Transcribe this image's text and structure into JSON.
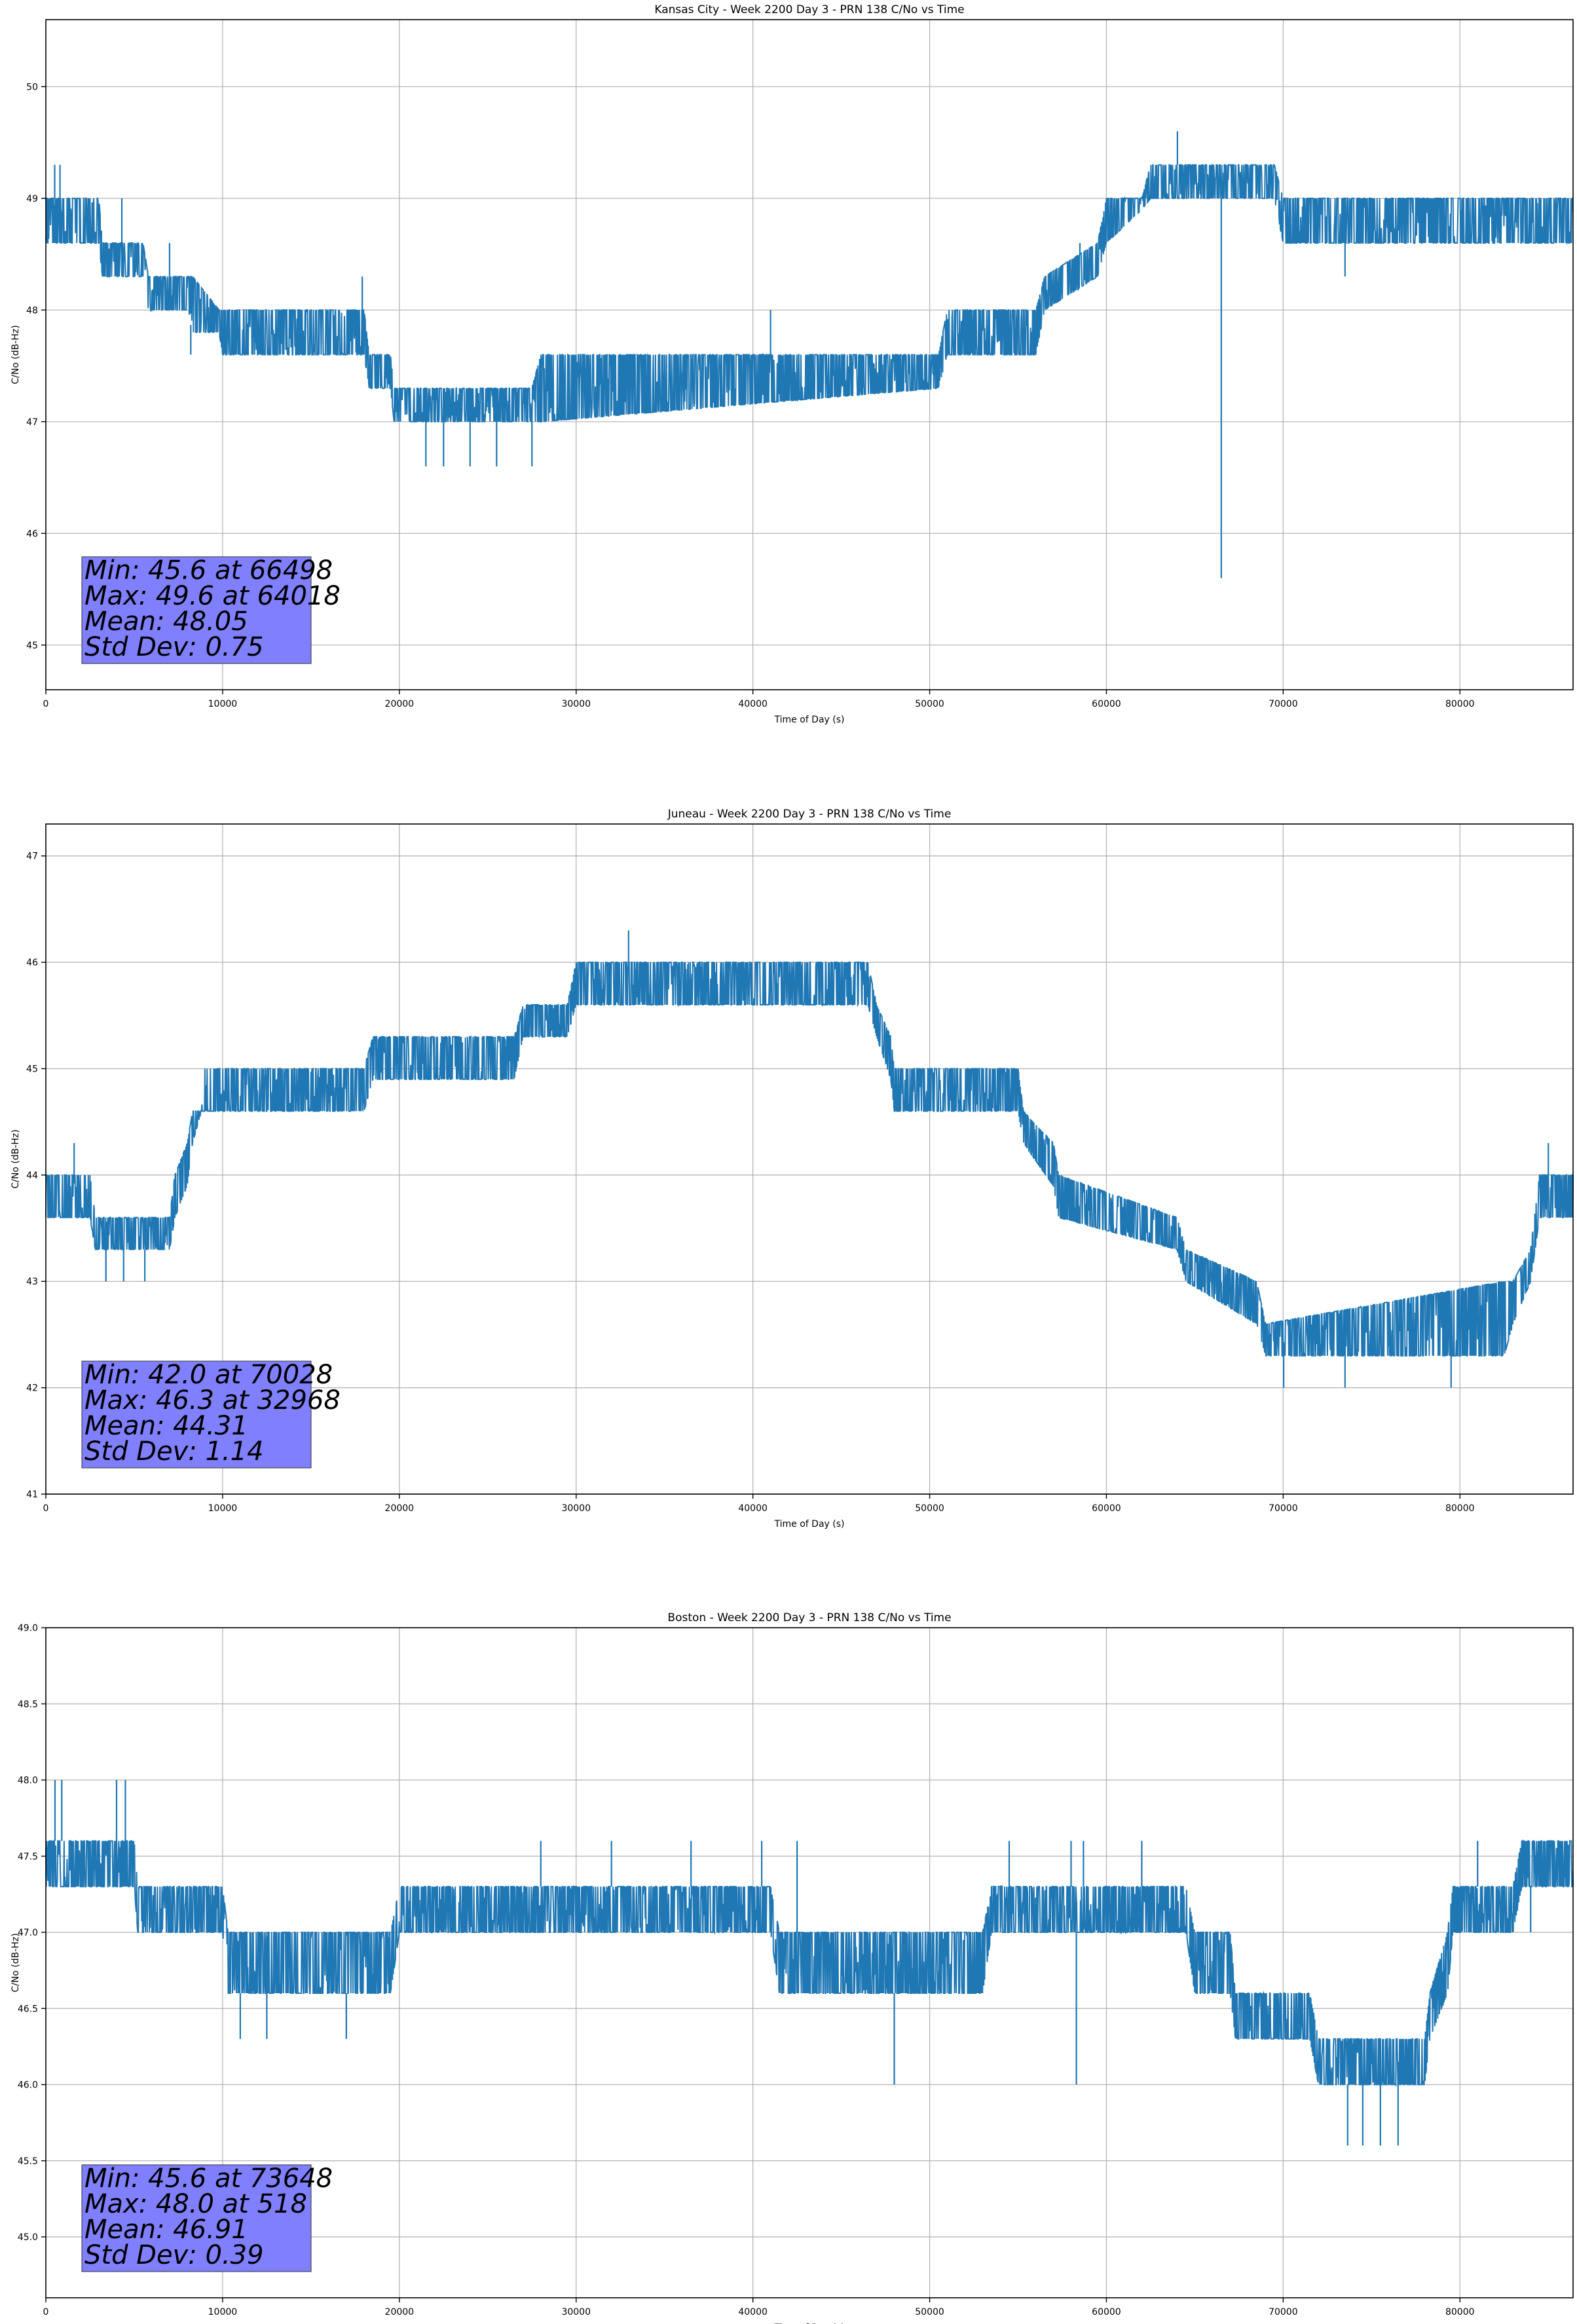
{
  "chart_data": [
    {
      "type": "line",
      "title": "Kansas City - Week 2200 Day 3 - PRN 138 C/No vs Time",
      "xlabel": "Time of Day (s)",
      "ylabel": "C/No (dB-Hz)",
      "xlim": [
        0,
        86400
      ],
      "ylim": [
        44.6,
        50.6
      ],
      "xticks": [
        0,
        10000,
        20000,
        30000,
        40000,
        50000,
        60000,
        70000,
        80000
      ],
      "yticks": [
        45,
        46,
        47,
        48,
        49,
        50
      ],
      "ytick_labels": [
        "45",
        "46",
        "47",
        "48",
        "49",
        "50"
      ],
      "grid": true,
      "series_color": "#1f77b4",
      "envelope": {
        "x": [
          0,
          3000,
          3200,
          5500,
          5800,
          8000,
          8300,
          9800,
          10000,
          18000,
          18300,
          19500,
          19700,
          27500,
          28000,
          50500,
          51000,
          56000,
          56500,
          59500,
          60000,
          62000,
          62500,
          69500,
          70000,
          86400
        ],
        "lo": [
          48.6,
          48.6,
          48.3,
          48.3,
          48.0,
          48.0,
          47.8,
          47.8,
          47.6,
          47.6,
          47.3,
          47.3,
          47.0,
          47.0,
          47.0,
          47.3,
          47.6,
          47.6,
          48.0,
          48.3,
          48.6,
          48.9,
          49.0,
          49.0,
          48.6,
          48.6
        ],
        "hi": [
          49.0,
          49.0,
          48.6,
          48.6,
          48.3,
          48.3,
          48.3,
          48.0,
          48.0,
          48.0,
          47.6,
          47.6,
          47.3,
          47.3,
          47.6,
          47.6,
          48.0,
          48.0,
          48.3,
          48.6,
          49.0,
          49.0,
          49.3,
          49.3,
          49.0,
          49.0
        ]
      },
      "spikes": [
        {
          "x": 500,
          "y": 49.3
        },
        {
          "x": 800,
          "y": 49.3
        },
        {
          "x": 4300,
          "y": 49.0
        },
        {
          "x": 7000,
          "y": 48.6
        },
        {
          "x": 8200,
          "y": 47.6
        },
        {
          "x": 17900,
          "y": 48.3
        },
        {
          "x": 21500,
          "y": 46.6
        },
        {
          "x": 22500,
          "y": 46.6
        },
        {
          "x": 24000,
          "y": 46.6
        },
        {
          "x": 25500,
          "y": 46.6
        },
        {
          "x": 27500,
          "y": 46.6
        },
        {
          "x": 41000,
          "y": 48.0
        },
        {
          "x": 58500,
          "y": 48.6
        },
        {
          "x": 64018,
          "y": 49.6
        },
        {
          "x": 66498,
          "y": 45.6
        },
        {
          "x": 73500,
          "y": 48.3
        }
      ],
      "annotation": {
        "lines": [
          "Min: 45.6 at 66498",
          "Max: 49.6 at 64018",
          "Mean: 48.05",
          "Std Dev: 0.75"
        ],
        "background": "#8080ff"
      }
    },
    {
      "type": "line",
      "title": "Juneau - Week 2200 Day 3 - PRN 138 C/No vs Time",
      "xlabel": "Time of Day (s)",
      "ylabel": "C/No (dB-Hz)",
      "xlim": [
        0,
        86400
      ],
      "ylim": [
        41.0,
        47.3
      ],
      "xticks": [
        0,
        10000,
        20000,
        30000,
        40000,
        50000,
        60000,
        70000,
        80000
      ],
      "yticks": [
        41,
        42,
        43,
        44,
        45,
        46,
        47
      ],
      "ytick_labels": [
        "41",
        "42",
        "43",
        "44",
        "45",
        "46",
        "47"
      ],
      "grid": true,
      "series_color": "#1f77b4",
      "envelope": {
        "x": [
          0,
          2500,
          2800,
          7000,
          7300,
          8000,
          8300,
          8800,
          9000,
          18000,
          18500,
          26500,
          27000,
          29500,
          30000,
          46500,
          47000,
          47800,
          48000,
          55000,
          55300,
          57000,
          57300,
          64000,
          64500,
          68500,
          69000,
          82500,
          83000,
          84000,
          84500,
          86400
        ],
        "lo": [
          43.6,
          43.6,
          43.3,
          43.3,
          43.6,
          43.9,
          44.3,
          44.6,
          44.6,
          44.6,
          44.9,
          44.9,
          45.3,
          45.3,
          45.6,
          45.6,
          45.3,
          44.9,
          44.6,
          44.6,
          44.3,
          43.9,
          43.6,
          43.3,
          43.0,
          42.6,
          42.3,
          42.3,
          42.6,
          43.0,
          43.6,
          43.6
        ],
        "hi": [
          44.0,
          44.0,
          43.6,
          43.6,
          44.0,
          44.3,
          44.6,
          44.6,
          45.0,
          45.0,
          45.3,
          45.3,
          45.6,
          45.6,
          46.0,
          46.0,
          45.6,
          45.3,
          45.0,
          45.0,
          44.6,
          44.3,
          44.0,
          43.6,
          43.3,
          43.0,
          42.6,
          43.0,
          43.0,
          43.3,
          44.0,
          44.0
        ]
      },
      "spikes": [
        {
          "x": 1600,
          "y": 44.3
        },
        {
          "x": 3400,
          "y": 43.0
        },
        {
          "x": 4400,
          "y": 43.0
        },
        {
          "x": 5600,
          "y": 43.0
        },
        {
          "x": 32968,
          "y": 46.3
        },
        {
          "x": 70028,
          "y": 42.0
        },
        {
          "x": 73500,
          "y": 42.0
        },
        {
          "x": 79500,
          "y": 42.0
        },
        {
          "x": 85000,
          "y": 44.3
        }
      ],
      "annotation": {
        "lines": [
          "Min: 42.0 at 70028",
          "Max: 46.3 at 32968",
          "Mean: 44.31",
          "Std Dev: 1.14"
        ],
        "background": "#8080ff"
      }
    },
    {
      "type": "line",
      "title": "Boston - Week 2200 Day 3 - PRN 138 C/No vs Time",
      "xlabel": "Time of Day (s)",
      "ylabel": "C/No (dB-Hz)",
      "xlim": [
        0,
        86400
      ],
      "ylim": [
        44.6,
        49.0
      ],
      "xticks": [
        0,
        10000,
        20000,
        30000,
        40000,
        50000,
        60000,
        70000,
        80000
      ],
      "yticks": [
        45.0,
        45.5,
        46.0,
        46.5,
        47.0,
        47.5,
        48.0,
        48.5,
        49.0
      ],
      "ytick_labels": [
        "45.0",
        "45.5",
        "46.0",
        "46.5",
        "47.0",
        "47.5",
        "48.0",
        "48.5",
        "49.0"
      ],
      "grid": true,
      "series_color": "#1f77b4",
      "envelope": {
        "x": [
          0,
          5000,
          5200,
          10000,
          10300,
          19500,
          20000,
          27500,
          28000,
          41000,
          41500,
          50000,
          50500,
          53000,
          53500,
          64500,
          65000,
          67000,
          67300,
          71500,
          72000,
          78000,
          78300,
          79300,
          79600,
          83000,
          83500,
          86400
        ],
        "lo": [
          47.3,
          47.3,
          47.0,
          47.0,
          46.6,
          46.6,
          47.0,
          47.0,
          47.0,
          47.0,
          46.6,
          46.6,
          46.6,
          46.6,
          47.0,
          47.0,
          46.6,
          46.6,
          46.3,
          46.3,
          46.0,
          46.0,
          46.3,
          46.6,
          47.0,
          47.0,
          47.3,
          47.3
        ],
        "hi": [
          47.6,
          47.6,
          47.3,
          47.3,
          47.0,
          47.0,
          47.3,
          47.3,
          47.3,
          47.3,
          47.0,
          47.0,
          47.0,
          47.0,
          47.3,
          47.3,
          47.0,
          47.0,
          46.6,
          46.6,
          46.3,
          46.3,
          46.6,
          47.0,
          47.3,
          47.3,
          47.6,
          47.6
        ]
      },
      "spikes": [
        {
          "x": 518,
          "y": 48.0
        },
        {
          "x": 900,
          "y": 48.0
        },
        {
          "x": 4000,
          "y": 48.0
        },
        {
          "x": 4500,
          "y": 48.0
        },
        {
          "x": 11000,
          "y": 46.3
        },
        {
          "x": 12500,
          "y": 46.3
        },
        {
          "x": 17000,
          "y": 46.3
        },
        {
          "x": 28000,
          "y": 47.6
        },
        {
          "x": 32000,
          "y": 47.6
        },
        {
          "x": 36500,
          "y": 47.6
        },
        {
          "x": 40500,
          "y": 47.6
        },
        {
          "x": 42500,
          "y": 47.6
        },
        {
          "x": 48000,
          "y": 46.0
        },
        {
          "x": 54500,
          "y": 47.6
        },
        {
          "x": 58000,
          "y": 47.6
        },
        {
          "x": 58700,
          "y": 47.6
        },
        {
          "x": 62000,
          "y": 47.6
        },
        {
          "x": 58300,
          "y": 46.0
        },
        {
          "x": 73648,
          "y": 45.6
        },
        {
          "x": 74500,
          "y": 45.6
        },
        {
          "x": 75500,
          "y": 45.6
        },
        {
          "x": 76500,
          "y": 45.6
        },
        {
          "x": 81000,
          "y": 47.6
        },
        {
          "x": 84000,
          "y": 47.0
        }
      ],
      "annotation": {
        "lines": [
          "Min: 45.6 at 73648",
          "Max: 48.0 at 518",
          "Mean: 46.91",
          "Std Dev: 0.39"
        ],
        "background": "#8080ff"
      }
    }
  ]
}
